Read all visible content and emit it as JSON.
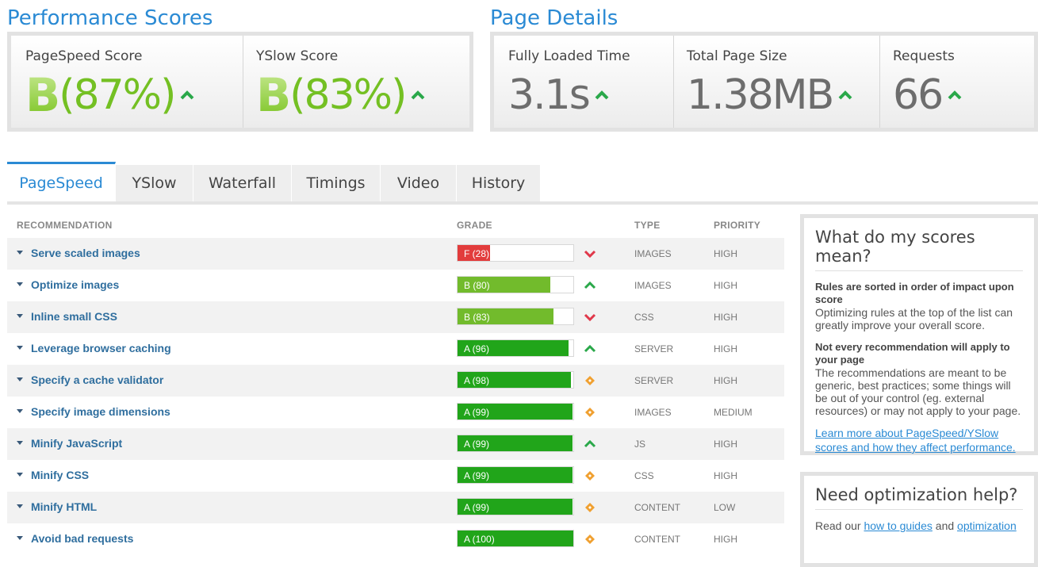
{
  "performance": {
    "title": "Performance Scores",
    "pagespeed": {
      "label": "PageSpeed Score",
      "grade": "B",
      "percent": "(87%)"
    },
    "yslow": {
      "label": "YSlow Score",
      "grade": "B",
      "percent": "(83%)"
    }
  },
  "details": {
    "title": "Page Details",
    "loaded": {
      "label": "Fully Loaded Time",
      "value": "3.1s"
    },
    "size": {
      "label": "Total Page Size",
      "value": "1.38MB"
    },
    "requests": {
      "label": "Requests",
      "value": "66"
    }
  },
  "tabs": [
    "PageSpeed",
    "YSlow",
    "Waterfall",
    "Timings",
    "Video",
    "History"
  ],
  "table": {
    "headers": {
      "recommendation": "RECOMMENDATION",
      "grade": "GRADE",
      "type": "TYPE",
      "priority": "PRIORITY"
    },
    "rows": [
      {
        "name": "Serve scaled images",
        "grade": "F (28)",
        "score": 28,
        "color": "#e23c3c",
        "trend": "down",
        "type": "IMAGES",
        "priority": "HIGH"
      },
      {
        "name": "Optimize images",
        "grade": "B (80)",
        "score": 80,
        "color": "#72bb2c",
        "trend": "up",
        "type": "IMAGES",
        "priority": "HIGH"
      },
      {
        "name": "Inline small CSS",
        "grade": "B (83)",
        "score": 83,
        "color": "#72bb2c",
        "trend": "down",
        "type": "CSS",
        "priority": "HIGH"
      },
      {
        "name": "Leverage browser caching",
        "grade": "A (96)",
        "score": 96,
        "color": "#21a51a",
        "trend": "up",
        "type": "SERVER",
        "priority": "HIGH"
      },
      {
        "name": "Specify a cache validator",
        "grade": "A (98)",
        "score": 98,
        "color": "#21a51a",
        "trend": "same",
        "type": "SERVER",
        "priority": "HIGH"
      },
      {
        "name": "Specify image dimensions",
        "grade": "A (99)",
        "score": 99,
        "color": "#21a51a",
        "trend": "same",
        "type": "IMAGES",
        "priority": "MEDIUM"
      },
      {
        "name": "Minify JavaScript",
        "grade": "A (99)",
        "score": 99,
        "color": "#21a51a",
        "trend": "up",
        "type": "JS",
        "priority": "HIGH"
      },
      {
        "name": "Minify CSS",
        "grade": "A (99)",
        "score": 99,
        "color": "#21a51a",
        "trend": "same",
        "type": "CSS",
        "priority": "HIGH"
      },
      {
        "name": "Minify HTML",
        "grade": "A (99)",
        "score": 99,
        "color": "#21a51a",
        "trend": "same",
        "type": "CONTENT",
        "priority": "LOW"
      },
      {
        "name": "Avoid bad requests",
        "grade": "A (100)",
        "score": 100,
        "color": "#21a51a",
        "trend": "same",
        "type": "CONTENT",
        "priority": "HIGH"
      }
    ]
  },
  "sidebar": {
    "scores": {
      "title": "What do my scores mean?",
      "bold1": "Rules are sorted in order of impact upon score",
      "text1": "Optimizing rules at the top of the list can greatly improve your overall score.",
      "bold2": "Not every recommendation will apply to your page",
      "text2": "The recommendations are meant to be generic, best practices; some things will be out of your control (eg. external resources) or may not apply to your page.",
      "link": "Learn more about PageSpeed/YSlow scores and how they affect performance."
    },
    "help": {
      "title": "Need optimization help?",
      "text_prefix": "Read our",
      "link1": "how to guides",
      "text_mid": "and",
      "link2": "optimization"
    }
  },
  "colors": {
    "accent": "#2a8ad4",
    "grade_green": "#74c023",
    "up": "#2aa84a",
    "down": "#e0384a",
    "same": "#f0a030"
  }
}
